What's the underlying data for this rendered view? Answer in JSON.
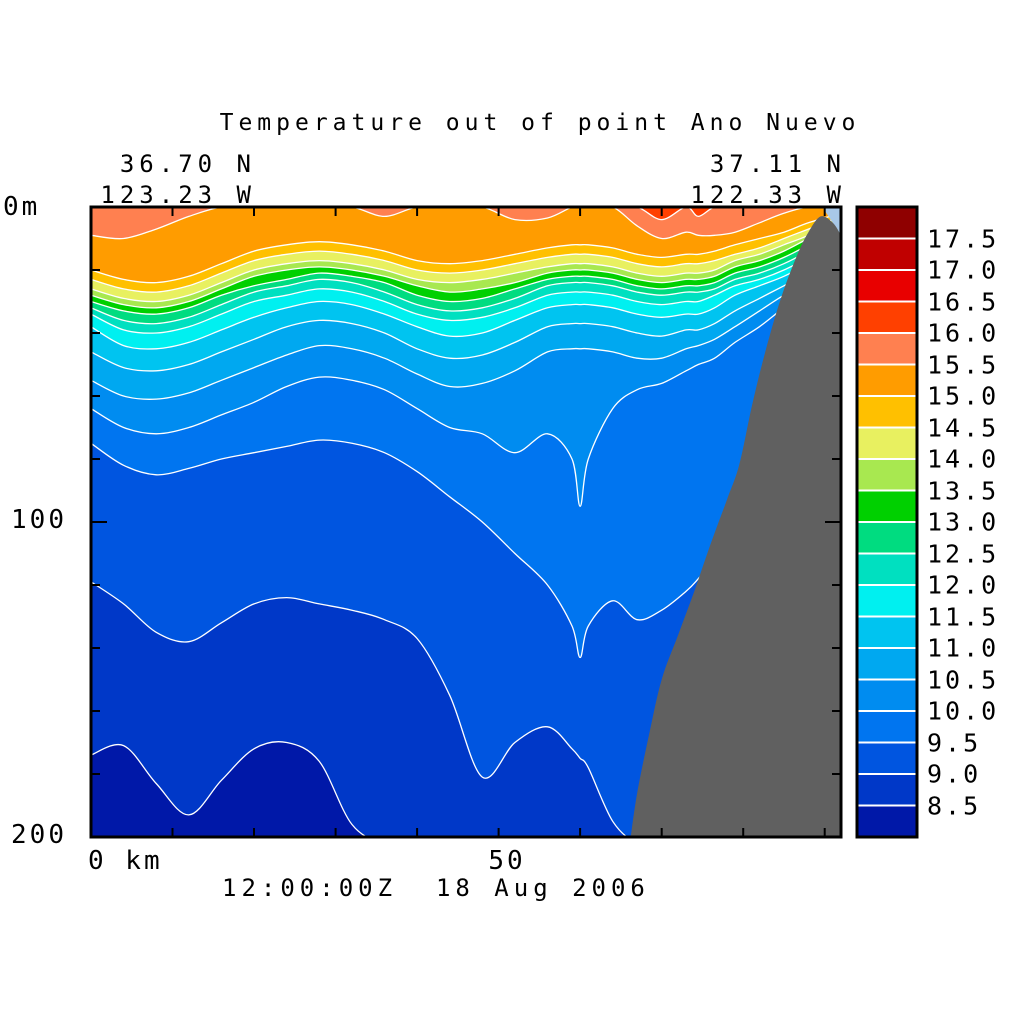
{
  "title": "Temperature out of point Ano Nuevo",
  "timestamp": "12:00:00Z  18 Aug 2006",
  "corners": {
    "top_left_lat": "36.70 N",
    "top_left_lon": "123.23 W",
    "top_right_lat": "37.11 N",
    "top_right_lon": "122.33 W"
  },
  "axes": {
    "depth_top": "0m",
    "depth_mid": "100",
    "depth_bottom": "200",
    "dist_origin": "0 km",
    "dist_mid": "50"
  },
  "colors": {
    "background": "#ffffff",
    "axis": "#000000",
    "contour_line": "#ffffff",
    "seafloor": "#606060",
    "shallow_shelf": "#a8c8e8",
    "deep_base": "#0018a8"
  },
  "chart_data": {
    "type": "filled_contour",
    "title": "Temperature out of point Ano Nuevo",
    "xlabel_unit": "km",
    "ylabel_unit": "m",
    "x_range": [
      0,
      92
    ],
    "y_range": [
      0,
      200
    ],
    "x_tick_step_km": 10,
    "y_tick_step_m": 20,
    "contour_interval": 0.5,
    "grid": false,
    "legend_position": "right-colorbar",
    "colorbar_labels": [
      "17.5",
      "17.0",
      "16.5",
      "16.0",
      "15.5",
      "15.0",
      "14.5",
      "14.0",
      "13.5",
      "13.0",
      "12.5",
      "12.0",
      "11.5",
      "11.0",
      "10.5",
      "10.0",
      "9.5",
      "9.0",
      "8.5"
    ],
    "colorbar_colors_top_to_bottom": [
      "#8f0000",
      "#c00000",
      "#e80000",
      "#ff4000",
      "#ff8050",
      "#ff9c00",
      "#ffc000",
      "#e8f060",
      "#a8e850",
      "#00d000",
      "#00dc80",
      "#00e0c0",
      "#00f0f0",
      "#00c4f0",
      "#00a8f0",
      "#008cf0",
      "#0075f0",
      "#0055e0",
      "#0038c8",
      "#0018a8"
    ],
    "x_km": [
      0,
      4,
      8,
      12,
      16,
      20,
      24,
      28,
      32,
      36,
      40,
      44,
      48,
      52,
      56,
      59,
      60,
      61,
      64,
      67,
      70,
      73,
      74.5,
      76.5,
      79,
      82,
      85,
      88,
      92
    ],
    "isotherm_depths_m": [
      {
        "level": 8.5,
        "color": "#0038c8",
        "depths": [
          174,
          171,
          183,
          193,
          182,
          172,
          170,
          176,
          196,
          212,
          220,
          220,
          220,
          220,
          220,
          220,
          220,
          220,
          220,
          220,
          220,
          220,
          220,
          220,
          220,
          220,
          220,
          220,
          220
        ]
      },
      {
        "level": 9.0,
        "color": "#0055e0",
        "depths": [
          119,
          126,
          135,
          138,
          132,
          126,
          124,
          126,
          128,
          131,
          137,
          155,
          181,
          170,
          165,
          172,
          175,
          178,
          195,
          206,
          210,
          210,
          210,
          210,
          210,
          210,
          210,
          210,
          210
        ]
      },
      {
        "level": 9.5,
        "color": "#0075f0",
        "depths": [
          75,
          82,
          85,
          83,
          80,
          78,
          76,
          74,
          75,
          78,
          84,
          92,
          100,
          110,
          120,
          133,
          143,
          133,
          125,
          131,
          128,
          122,
          118,
          112,
          104,
          96,
          88,
          80,
          72
        ]
      },
      {
        "level": 10.0,
        "color": "#008cf0",
        "depths": [
          64,
          70,
          72,
          70,
          66,
          62,
          57,
          54,
          55,
          58,
          64,
          70,
          72,
          78,
          72,
          80,
          95,
          80,
          64,
          58,
          56,
          52,
          50,
          48,
          43,
          38,
          32,
          27,
          21
        ]
      },
      {
        "level": 10.5,
        "color": "#00a8f0",
        "depths": [
          55,
          60,
          61,
          59,
          55,
          51,
          47,
          44,
          45,
          48,
          53,
          57,
          56,
          52,
          46,
          45,
          45,
          45,
          46,
          48,
          48,
          45,
          44,
          42,
          38,
          33,
          28,
          24,
          18
        ]
      },
      {
        "level": 11.0,
        "color": "#00c4f0",
        "depths": [
          46,
          51,
          52,
          50,
          46,
          42,
          38,
          36,
          37,
          40,
          45,
          48,
          47,
          43,
          38,
          37,
          37,
          37,
          38,
          40,
          41,
          39,
          39,
          37,
          33,
          29,
          25,
          21,
          15
        ]
      },
      {
        "level": 11.5,
        "color": "#00f0f0",
        "depths": [
          38,
          44,
          45,
          43,
          39,
          35,
          32,
          30,
          31,
          34,
          38,
          41,
          40,
          36,
          32,
          31,
          31,
          31,
          32,
          34,
          35,
          34,
          34,
          32,
          28,
          25,
          22,
          18,
          12
        ]
      },
      {
        "level": 12.0,
        "color": "#00e0c0",
        "depths": [
          34,
          39,
          40,
          38,
          34,
          30,
          28,
          26,
          27,
          30,
          34,
          36,
          35,
          32,
          28,
          27,
          27,
          27,
          28,
          30,
          31,
          30,
          30,
          28,
          25,
          23,
          20,
          16,
          10
        ]
      },
      {
        "level": 12.5,
        "color": "#00dc80",
        "depths": [
          32,
          36,
          37,
          35,
          31,
          27,
          25,
          23,
          24,
          27,
          31,
          33,
          32,
          29,
          25,
          24,
          24,
          24,
          25,
          27,
          28,
          27,
          27,
          26,
          23,
          21,
          18,
          14,
          8
        ]
      },
      {
        "level": 13.0,
        "color": "#00d000",
        "depths": [
          30,
          33,
          34,
          32,
          28,
          25,
          23,
          21,
          22,
          24,
          28,
          30,
          29,
          26,
          23,
          22,
          22,
          22,
          23,
          25,
          26,
          25,
          25,
          24,
          21,
          19,
          16,
          12,
          6
        ]
      },
      {
        "level": 13.5,
        "color": "#a8e850",
        "depths": [
          28,
          31,
          32,
          30,
          26,
          22,
          20,
          19,
          20,
          22,
          25,
          27,
          26,
          24,
          21,
          20,
          20,
          20,
          21,
          23,
          24,
          23,
          23,
          22,
          19,
          17,
          14,
          10,
          5
        ]
      },
      {
        "level": 14.0,
        "color": "#e8f060",
        "depths": [
          26,
          29,
          30,
          28,
          24,
          20,
          18,
          17,
          18,
          20,
          23,
          24,
          23,
          21,
          19,
          18,
          18,
          18,
          19,
          21,
          22,
          21,
          21,
          20,
          17,
          15,
          12,
          9,
          4
        ]
      },
      {
        "level": 14.5,
        "color": "#ffc000",
        "depths": [
          23,
          26,
          27,
          25,
          21,
          17,
          15,
          14,
          15,
          17,
          20,
          21,
          20,
          18,
          16,
          15,
          15,
          15,
          16,
          18,
          19,
          18,
          18,
          17,
          15,
          13,
          10,
          7,
          3
        ]
      },
      {
        "level": 15.0,
        "color": "#ff9c00",
        "depths": [
          20,
          23,
          24,
          22,
          18,
          14,
          12,
          11,
          12,
          14,
          17,
          18,
          17,
          15,
          13,
          12,
          12,
          12,
          13,
          15,
          16,
          15,
          15,
          14,
          12,
          10,
          8,
          5,
          2
        ]
      },
      {
        "level": 15.5,
        "color": "#ff8050",
        "depths": [
          9,
          10,
          7,
          3,
          0,
          0,
          0,
          0,
          0,
          3,
          0,
          0,
          0,
          4,
          3.5,
          0,
          0,
          0,
          0,
          6,
          10,
          8,
          9,
          9,
          8,
          5,
          2,
          0,
          0
        ]
      },
      {
        "level": 16.0,
        "color": "#ff4000",
        "depths": [
          0,
          0,
          0,
          0,
          0,
          0,
          0,
          0,
          0,
          0,
          0,
          0,
          0,
          0,
          0,
          0,
          0,
          0,
          0,
          0,
          4,
          0,
          3,
          0,
          0,
          0,
          0,
          0,
          0
        ]
      }
    ],
    "seafloor_profile_km_depth": [
      [
        66.2,
        200
      ],
      [
        67,
        186
      ],
      [
        68.5,
        167
      ],
      [
        70,
        150
      ],
      [
        72,
        136
      ],
      [
        74,
        122
      ],
      [
        76,
        107
      ],
      [
        78,
        93
      ],
      [
        79.5,
        82
      ],
      [
        81,
        64
      ],
      [
        82.5,
        48
      ],
      [
        84.5,
        30
      ],
      [
        86.5,
        16
      ],
      [
        88,
        8
      ],
      [
        89.5,
        3
      ],
      [
        91,
        5
      ],
      [
        92,
        9
      ]
    ],
    "shallow_shelf_polygon_km_depth": [
      [
        89.7,
        0
      ],
      [
        92,
        0
      ],
      [
        92,
        9
      ]
    ]
  }
}
